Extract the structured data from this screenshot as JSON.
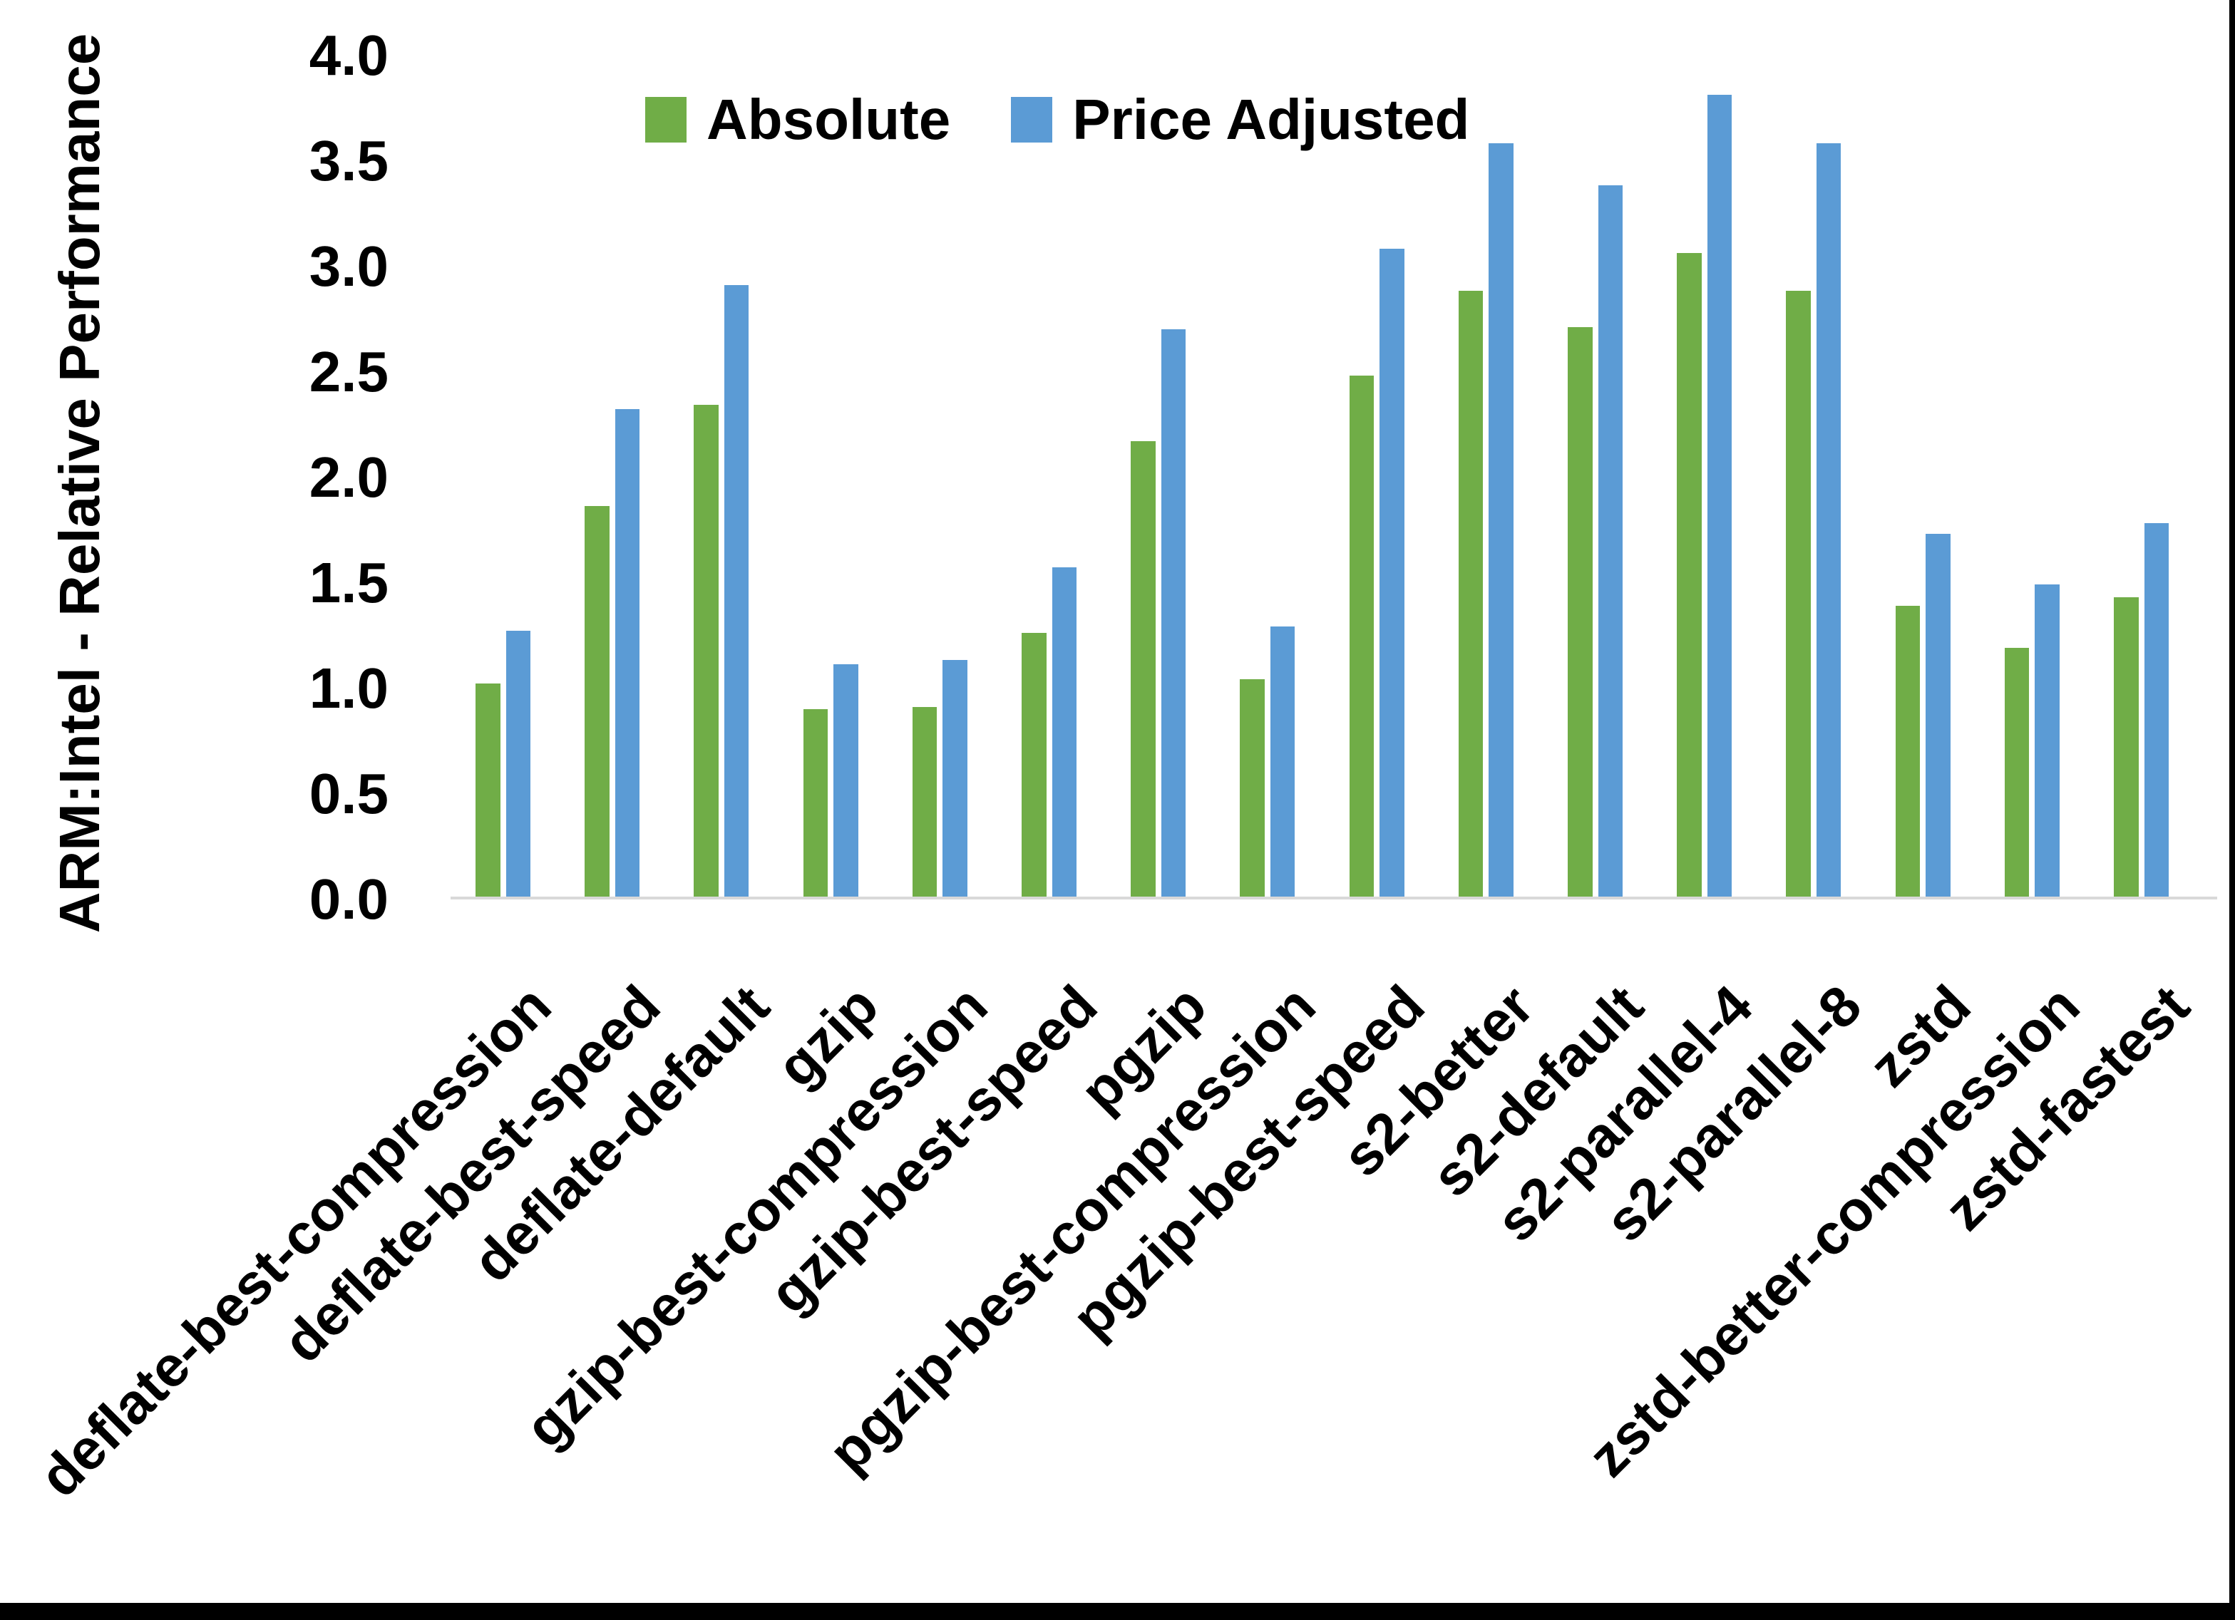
{
  "figure": {
    "background": "#ffffff",
    "edge_color": "#000000",
    "axis_line_color": "#d9d9d9",
    "text_color": "#000000"
  },
  "chart_data": {
    "type": "bar",
    "title": "",
    "xlabel": "",
    "ylabel": "ARM:Intel - Relative Performance",
    "ylim": [
      0,
      4
    ],
    "ytick_step": 0.5,
    "yticks": [
      "0.0",
      "0.5",
      "1.0",
      "1.5",
      "2.0",
      "2.5",
      "3.0",
      "3.5",
      "4.0"
    ],
    "grid": false,
    "legend_position": "top-center",
    "categories": [
      "deflate-best-compression",
      "deflate-best-speed",
      "deflate-default",
      "gzip",
      "gzip-best-compression",
      "gzip-best-speed",
      "pgzip",
      "pgzip-best-compression",
      "pgzip-best-speed",
      "s2-better",
      "s2-default",
      "s2-parallel-4",
      "s2-parallel-8",
      "zstd",
      "zstd-better-compression",
      "zstd-fastest"
    ],
    "series": [
      {
        "name": "Absolute",
        "color": "#70AD47",
        "values": [
          1.01,
          1.85,
          2.33,
          0.89,
          0.9,
          1.25,
          2.16,
          1.03,
          2.47,
          2.87,
          2.7,
          3.05,
          2.87,
          1.38,
          1.18,
          1.42
        ]
      },
      {
        "name": "Price Adjusted",
        "color": "#5B9BD5",
        "values": [
          1.26,
          2.31,
          2.9,
          1.1,
          1.12,
          1.56,
          2.69,
          1.28,
          3.07,
          3.57,
          3.37,
          3.8,
          3.57,
          1.72,
          1.48,
          1.77
        ]
      }
    ]
  }
}
